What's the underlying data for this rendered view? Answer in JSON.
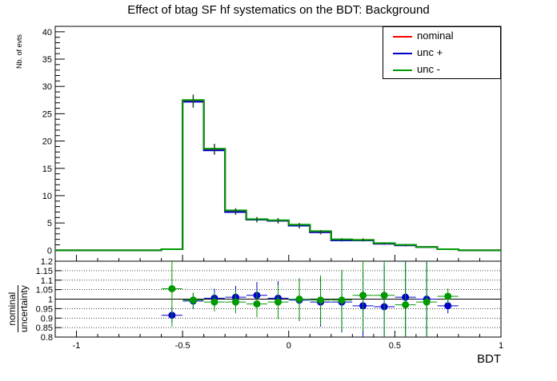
{
  "title": "Effect of btag SF hf systematics on the BDT: Background",
  "colors": {
    "nominal": "#ff0000",
    "unc_plus": "#0000ff",
    "unc_minus": "#00aa00",
    "axis": "#000000"
  },
  "legend": [
    {
      "label": "nominal",
      "color": "#ff0000"
    },
    {
      "label": "unc +",
      "color": "#0000cc"
    },
    {
      "label": "unc -",
      "color": "#009900"
    }
  ],
  "chart_data": [
    {
      "type": "line",
      "ylabel": "Nb. of evts",
      "xlim": [
        -1.1,
        1.0
      ],
      "ylim": [
        -2,
        41
      ],
      "yticks": [
        0,
        5,
        10,
        15,
        20,
        25,
        30,
        35,
        40
      ],
      "bin_edges": [
        -1.1,
        -0.6,
        -0.5,
        -0.4,
        -0.3,
        -0.2,
        -0.1,
        0.0,
        0.1,
        0.2,
        0.3,
        0.4,
        0.5,
        0.6,
        0.7,
        0.8,
        0.9,
        1.0
      ],
      "series": [
        {
          "name": "nominal",
          "values": [
            0,
            0.2,
            27.3,
            18.5,
            7.1,
            5.6,
            5.4,
            4.5,
            3.3,
            1.9,
            1.9,
            1.2,
            0.9,
            0.6,
            0.2,
            0.0,
            0.0
          ]
        },
        {
          "name": "unc +",
          "values": [
            0,
            0.2,
            27.2,
            18.3,
            7.0,
            5.6,
            5.4,
            4.5,
            3.3,
            1.8,
            1.8,
            1.2,
            0.9,
            0.6,
            0.2,
            0.0,
            0.0
          ]
        },
        {
          "name": "unc -",
          "values": [
            0,
            0.2,
            27.5,
            18.6,
            7.3,
            5.7,
            5.5,
            4.7,
            3.5,
            2.0,
            1.9,
            1.3,
            1.0,
            0.6,
            0.2,
            0.0,
            0.0
          ]
        }
      ],
      "errors": [
        {
          "x": -0.45,
          "y": 27.3,
          "err": 1.2
        },
        {
          "x": -0.35,
          "y": 18.5,
          "err": 1.0
        },
        {
          "x": -0.25,
          "y": 7.1,
          "err": 0.6
        },
        {
          "x": -0.15,
          "y": 5.6,
          "err": 0.5
        },
        {
          "x": -0.05,
          "y": 5.4,
          "err": 0.5
        },
        {
          "x": 0.05,
          "y": 4.5,
          "err": 0.5
        },
        {
          "x": 0.15,
          "y": 3.3,
          "err": 0.4
        },
        {
          "x": 0.25,
          "y": 1.9,
          "err": 0.3
        },
        {
          "x": 0.35,
          "y": 1.9,
          "err": 0.3
        },
        {
          "x": 0.45,
          "y": 1.2,
          "err": 0.2
        },
        {
          "x": 0.55,
          "y": 0.9,
          "err": 0.2
        }
      ]
    },
    {
      "type": "scatter",
      "xlabel": "BDT",
      "ylabel_numerator": "nominal",
      "ylabel_denominator": "uncertainty",
      "xlim": [
        -1.1,
        1.0
      ],
      "ylim": [
        0.8,
        1.2
      ],
      "xticks": [
        -1,
        -0.5,
        0,
        0.5,
        1
      ],
      "yticks": [
        0.8,
        0.85,
        0.9,
        0.95,
        1,
        1.05,
        1.1,
        1.15,
        1.2
      ],
      "reference_line": 1.0,
      "grid": "horizontal dotted",
      "x": [
        -0.55,
        -0.45,
        -0.35,
        -0.25,
        -0.15,
        -0.05,
        0.05,
        0.15,
        0.25,
        0.35,
        0.45,
        0.55,
        0.65,
        0.75
      ],
      "series": [
        {
          "name": "unc +",
          "values": [
            0.915,
            0.99,
            1.005,
            1.01,
            1.02,
            1.005,
            0.995,
            0.985,
            0.985,
            0.965,
            0.96,
            1.01,
            1.0,
            0.965
          ],
          "errors": [
            0.04,
            0.04,
            0.05,
            0.06,
            0.07,
            0.09,
            0.11,
            0.13,
            0.16,
            0.19,
            0.22,
            0.26,
            0.28,
            0.04
          ]
        },
        {
          "name": "unc -",
          "values": [
            1.055,
            0.995,
            0.985,
            0.985,
            0.975,
            0.985,
            1.0,
            0.995,
            0.995,
            1.02,
            1.02,
            0.97,
            0.985,
            1.015
          ],
          "errors": [
            0.2,
            0.04,
            0.05,
            0.06,
            0.07,
            0.09,
            0.11,
            0.13,
            0.16,
            0.19,
            0.22,
            0.26,
            0.28,
            0.04
          ]
        }
      ]
    }
  ]
}
